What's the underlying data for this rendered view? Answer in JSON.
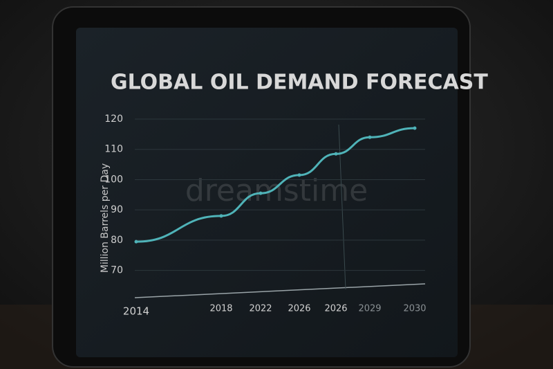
{
  "chart_data": {
    "type": "line",
    "title": "GLOBAL OIL DEMAND FORECAST",
    "y_label": "Million Barrels per Day",
    "watermark": "dreamstime",
    "categories": [
      "2014",
      "2018",
      "2022",
      "2026",
      "2026",
      "2029",
      "2030"
    ],
    "series": [
      {
        "color": "#4fb3b8",
        "values": [
          79.5,
          88,
          95.5,
          101.5,
          108.5,
          114,
          117
        ]
      }
    ],
    "ylim": [
      61,
      120
    ],
    "yticks": [
      70,
      80,
      90,
      100,
      110,
      120
    ],
    "grid": true
  }
}
